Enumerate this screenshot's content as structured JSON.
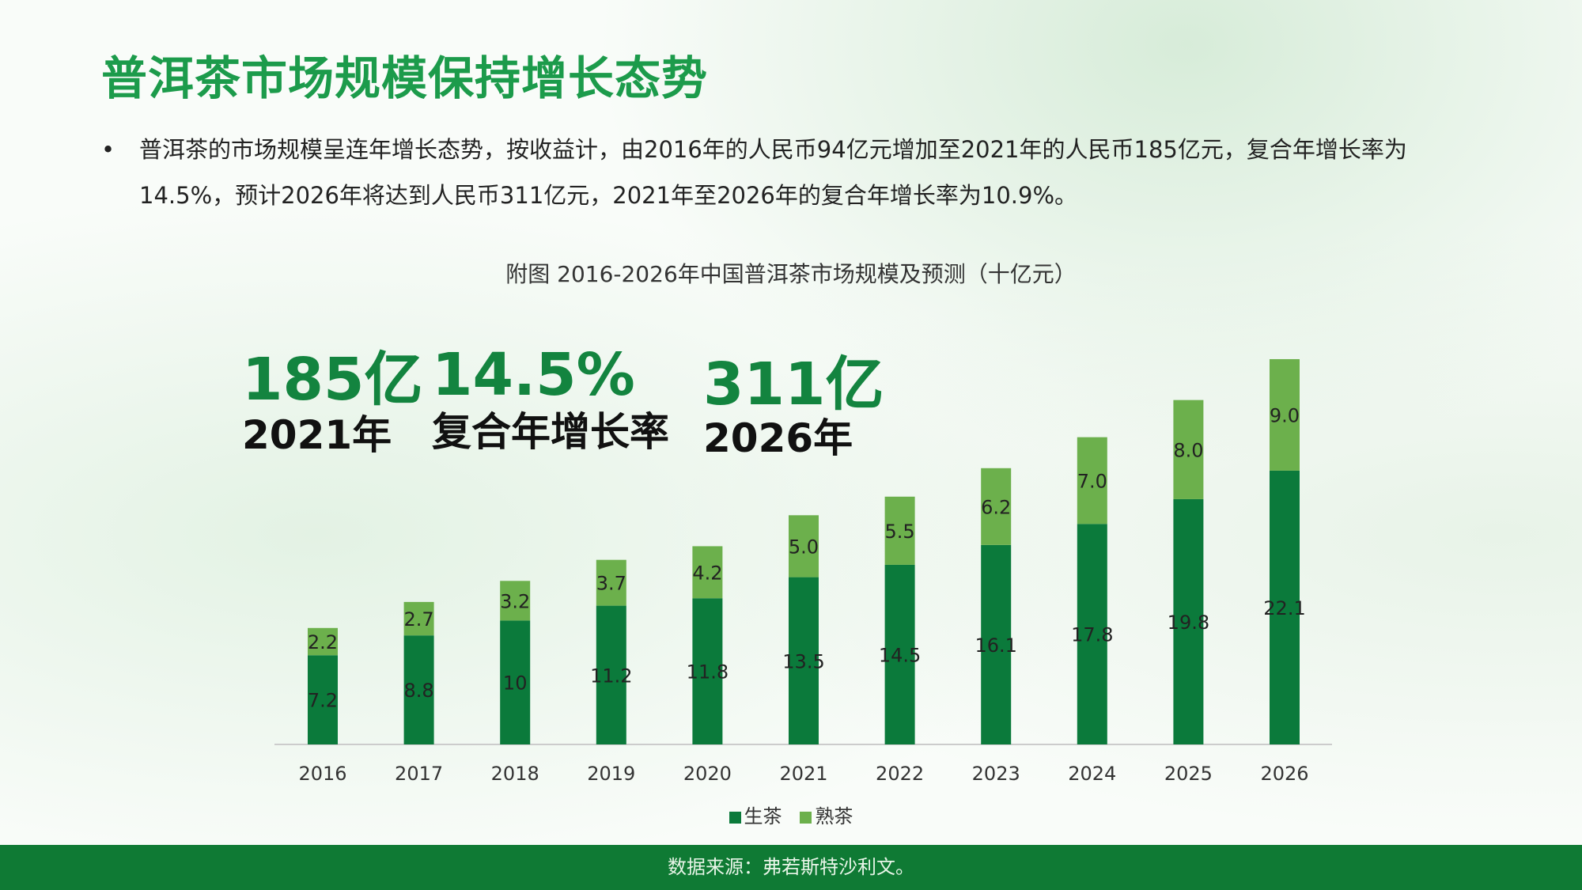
{
  "title": "普洱茶市场规模保持增长态势",
  "bullet": "普洱茶的市场规模呈连年增长态势，按收益计，由2016年的人民币94亿元增加至2021年的人民币185亿元，复合年增长率为14.5%，预计2026年将达到人民币311亿元，2021年至2026年的复合年增长率为10.9%。",
  "highlights": [
    {
      "value": "185亿",
      "label": "2021年"
    },
    {
      "value": "14.5%",
      "label": "复合年增长率"
    },
    {
      "value": "311亿",
      "label": "2026年"
    }
  ],
  "footer": "数据来源：弗若斯特沙利文。",
  "colors": {
    "sheng": "#0b7a3b",
    "shu": "#6cb04c",
    "title": "#1c9b4b"
  },
  "chart_data": {
    "type": "bar",
    "stacked": true,
    "title": "附图 2016-2026年中国普洱茶市场规模及预测（十亿元）",
    "categories": [
      "2016",
      "2017",
      "2018",
      "2019",
      "2020",
      "2021",
      "2022",
      "2023",
      "2024",
      "2025",
      "2026"
    ],
    "series": [
      {
        "name": "生茶",
        "values": [
          7.2,
          8.8,
          10,
          11.2,
          11.8,
          13.5,
          14.5,
          16.1,
          17.8,
          19.8,
          22.1
        ],
        "labels": [
          "7.2",
          "8.8",
          "10",
          "11.2",
          "11.8",
          "13.5",
          "14.5",
          "16.1",
          "17.8",
          "19.8",
          "22.1"
        ]
      },
      {
        "name": "熟茶",
        "values": [
          2.2,
          2.7,
          3.2,
          3.7,
          4.2,
          5.0,
          5.5,
          6.2,
          7.0,
          8.0,
          9.0
        ],
        "labels": [
          "2.2",
          "2.7",
          "3.2",
          "3.7",
          "4.2",
          "5.0",
          "5.5",
          "6.2",
          "7.0",
          "8.0",
          "9.0"
        ]
      }
    ],
    "legend": "bottom",
    "grid": false
  }
}
